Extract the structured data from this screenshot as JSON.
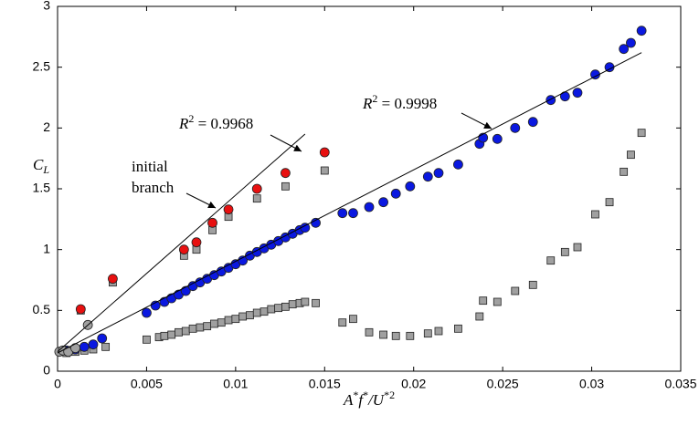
{
  "chart_data": {
    "type": "scatter",
    "xlabel": [
      "A",
      "*",
      "f",
      "*",
      "/U",
      "*2"
    ],
    "ylabel": [
      "C",
      "L"
    ],
    "xlim": [
      0,
      0.035
    ],
    "ylim": [
      0,
      3
    ],
    "xticks": [
      0,
      0.005,
      0.01,
      0.015,
      0.02,
      0.025,
      0.03,
      0.035
    ],
    "yticks": [
      0,
      0.5,
      1,
      1.5,
      2,
      2.5,
      3
    ],
    "grid": false,
    "annotations": [
      {
        "parts": [
          "R",
          "2",
          " = 0.9968"
        ]
      },
      {
        "parts": [
          "R",
          "2",
          " = 0.9998"
        ]
      },
      {
        "lines": [
          "initial",
          "branch"
        ]
      }
    ],
    "fits": [
      {
        "color": "#000000",
        "x": [
          0,
          0.0139
        ],
        "values": [
          0.16,
          1.95
        ]
      },
      {
        "color": "#000000",
        "x": [
          0,
          0.0328
        ],
        "values": [
          0.15,
          2.62
        ]
      }
    ],
    "series": [
      {
        "marker": "square",
        "color": "#a0a0a0",
        "x": [
          0.0005,
          0.001,
          0.0015,
          0.002,
          0.0027,
          0.005,
          0.0057,
          0.006,
          0.0064,
          0.0068,
          0.0072,
          0.0076,
          0.008,
          0.0084,
          0.0088,
          0.0092,
          0.0096,
          0.01,
          0.0104,
          0.0108,
          0.0112,
          0.0116,
          0.012,
          0.0124,
          0.0128,
          0.0132,
          0.0136,
          0.0139,
          0.0145,
          0.016,
          0.0166,
          0.0175,
          0.0183,
          0.019,
          0.0198,
          0.0208,
          0.0214,
          0.0225,
          0.0237,
          0.0239,
          0.0247,
          0.0257,
          0.0267,
          0.0277,
          0.0285,
          0.0292,
          0.0302,
          0.031,
          0.0318,
          0.0322,
          0.0328
        ],
        "values": [
          0.15,
          0.16,
          0.17,
          0.18,
          0.2,
          0.26,
          0.28,
          0.29,
          0.3,
          0.32,
          0.33,
          0.35,
          0.36,
          0.37,
          0.39,
          0.4,
          0.42,
          0.43,
          0.45,
          0.46,
          0.48,
          0.49,
          0.51,
          0.52,
          0.53,
          0.55,
          0.56,
          0.57,
          0.56,
          0.4,
          0.43,
          0.32,
          0.3,
          0.29,
          0.29,
          0.31,
          0.33,
          0.35,
          0.45,
          0.58,
          0.57,
          0.66,
          0.71,
          0.91,
          0.98,
          1.02,
          1.29,
          1.39,
          1.64,
          1.78,
          1.96
        ]
      },
      {
        "marker": "square",
        "color": "#a0a0a0",
        "x": [
          0.0013,
          0.0031,
          0.0071,
          0.0078,
          0.0087,
          0.0096,
          0.0112,
          0.0128,
          0.015
        ],
        "values": [
          0.5,
          0.73,
          0.95,
          1.0,
          1.16,
          1.27,
          1.42,
          1.52,
          1.65
        ]
      },
      {
        "marker": "circle",
        "color": "#0a18e0",
        "x": [
          0.0005,
          0.001,
          0.0015,
          0.002,
          0.0025,
          0.005,
          0.0055,
          0.006,
          0.0064,
          0.0068,
          0.0072,
          0.0076,
          0.008,
          0.0084,
          0.0088,
          0.0092,
          0.0096,
          0.01,
          0.0104,
          0.0108,
          0.0112,
          0.0116,
          0.012,
          0.0124,
          0.0128,
          0.0132,
          0.0136,
          0.0139,
          0.0145,
          0.016,
          0.0166,
          0.0175,
          0.0183,
          0.019,
          0.0198,
          0.0208,
          0.0214,
          0.0225,
          0.0237,
          0.0239,
          0.0247,
          0.0257,
          0.0267,
          0.0277,
          0.0285,
          0.0292,
          0.0302,
          0.031,
          0.0318,
          0.0322,
          0.0328
        ],
        "values": [
          0.17,
          0.18,
          0.2,
          0.22,
          0.27,
          0.48,
          0.54,
          0.57,
          0.6,
          0.63,
          0.66,
          0.7,
          0.73,
          0.76,
          0.79,
          0.82,
          0.85,
          0.88,
          0.91,
          0.95,
          0.98,
          1.01,
          1.04,
          1.07,
          1.1,
          1.13,
          1.16,
          1.18,
          1.22,
          1.3,
          1.3,
          1.35,
          1.39,
          1.46,
          1.52,
          1.6,
          1.63,
          1.7,
          1.87,
          1.92,
          1.91,
          2.0,
          2.05,
          2.23,
          2.26,
          2.29,
          2.44,
          2.5,
          2.65,
          2.7,
          2.8
        ]
      },
      {
        "marker": "circle",
        "color": "#e81010",
        "x": [
          0.0013,
          0.0031,
          0.0071,
          0.0078,
          0.0087,
          0.0096,
          0.0112,
          0.0128,
          0.015
        ],
        "values": [
          0.51,
          0.76,
          1.0,
          1.06,
          1.22,
          1.33,
          1.5,
          1.63,
          1.8
        ]
      },
      {
        "marker": "circle",
        "color": "#a0a0a0",
        "x": [
          0.0001,
          0.0003,
          0.0006,
          0.001,
          0.0017
        ],
        "values": [
          0.16,
          0.17,
          0.16,
          0.19,
          0.38
        ]
      }
    ]
  }
}
